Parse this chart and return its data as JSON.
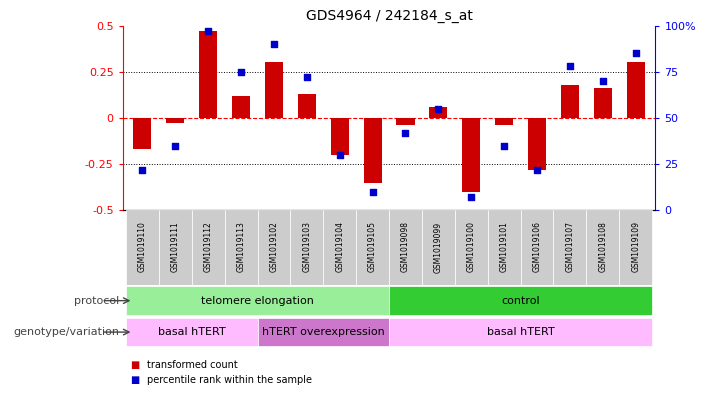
{
  "title": "GDS4964 / 242184_s_at",
  "samples": [
    "GSM1019110",
    "GSM1019111",
    "GSM1019112",
    "GSM1019113",
    "GSM1019102",
    "GSM1019103",
    "GSM1019104",
    "GSM1019105",
    "GSM1019098",
    "GSM1019099",
    "GSM1019100",
    "GSM1019101",
    "GSM1019106",
    "GSM1019107",
    "GSM1019108",
    "GSM1019109"
  ],
  "bar_values": [
    -0.17,
    -0.03,
    0.47,
    0.12,
    0.3,
    0.13,
    -0.2,
    -0.35,
    -0.04,
    0.06,
    -0.4,
    -0.04,
    -0.28,
    0.18,
    0.16,
    0.3
  ],
  "dot_values": [
    22,
    35,
    97,
    75,
    90,
    72,
    30,
    10,
    42,
    55,
    7,
    35,
    22,
    78,
    70,
    85
  ],
  "ylim": [
    -0.5,
    0.5
  ],
  "y2lim": [
    0,
    100
  ],
  "yticks": [
    -0.5,
    -0.25,
    0,
    0.25,
    0.5
  ],
  "y2ticks": [
    0,
    25,
    50,
    75,
    100
  ],
  "bar_color": "#cc0000",
  "dot_color": "#0000cc",
  "protocol_groups": [
    {
      "label": "telomere elongation",
      "start": 0,
      "end": 8,
      "color": "#99ee99"
    },
    {
      "label": "control",
      "start": 8,
      "end": 16,
      "color": "#33cc33"
    }
  ],
  "genotype_groups": [
    {
      "label": "basal hTERT",
      "start": 0,
      "end": 4,
      "color": "#ffbbff"
    },
    {
      "label": "hTERT overexpression",
      "start": 4,
      "end": 8,
      "color": "#cc77cc"
    },
    {
      "label": "basal hTERT",
      "start": 8,
      "end": 16,
      "color": "#ffbbff"
    }
  ],
  "legend_labels": [
    "transformed count",
    "percentile rank within the sample"
  ],
  "left_label_protocol": "protocol",
  "left_label_genotype": "genotype/variation"
}
